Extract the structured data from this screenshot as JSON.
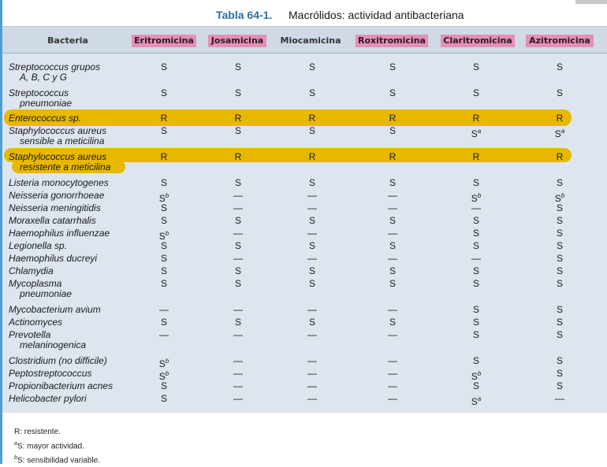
{
  "table": {
    "number": "Tabla 64-1.",
    "title": "Macrólidos: actividad antibacteriana",
    "headers": [
      "Bacteria",
      "Eritromicina",
      "Josamicina",
      "Miocamicina",
      "Roxitromicina",
      "Claritromicina",
      "Azitromicina"
    ],
    "highlight_color": "#e8b800",
    "header_highlight_color": "#e58fb7",
    "rows": [
      {
        "bacteria": "Streptococcus grupos",
        "bacteria2": "A, B, C y G",
        "values": [
          "S",
          "S",
          "S",
          "S",
          "S",
          "S"
        ]
      },
      {
        "bacteria": "Streptococcus",
        "bacteria2": "pneumoniae",
        "values": [
          "S",
          "S",
          "S",
          "S",
          "S",
          "S"
        ]
      },
      {
        "bacteria": "Enterococcus sp.",
        "bacteria2": "",
        "values": [
          "R",
          "R",
          "R",
          "R",
          "R",
          "R"
        ],
        "highlight": true
      },
      {
        "bacteria": "Staphylococcus aureus",
        "bacteria2": "sensible a meticilina",
        "values": [
          "S",
          "S",
          "S",
          "S",
          "S^a",
          "S^a"
        ]
      },
      {
        "bacteria": "Staphylococcus aureus",
        "bacteria2": "resistente a meticilina",
        "values": [
          "R",
          "R",
          "R",
          "R",
          "R",
          "R"
        ],
        "highlight": true
      },
      {
        "bacteria": "Listeria monocytogenes",
        "bacteria2": "",
        "values": [
          "S",
          "S",
          "S",
          "S",
          "S",
          "S"
        ]
      },
      {
        "bacteria": "Neisseria gonorrhoeae",
        "bacteria2": "",
        "values": [
          "S^b",
          "—",
          "—",
          "—",
          "S^b",
          "S^b"
        ]
      },
      {
        "bacteria": "Neisseria meningitidis",
        "bacteria2": "",
        "values": [
          "S",
          "—",
          "—",
          "—",
          "—",
          "S"
        ]
      },
      {
        "bacteria": "Moraxella catarrhalis",
        "bacteria2": "",
        "values": [
          "S",
          "S",
          "S",
          "S",
          "S",
          "S"
        ]
      },
      {
        "bacteria": "Haemophilus influenzae",
        "bacteria2": "",
        "values": [
          "S^b",
          "—",
          "—",
          "—",
          "S",
          "S"
        ]
      },
      {
        "bacteria": "Legionella sp.",
        "bacteria2": "",
        "values": [
          "S",
          "S",
          "S",
          "S",
          "S",
          "S"
        ]
      },
      {
        "bacteria": "Haemophilus ducreyi",
        "bacteria2": "",
        "values": [
          "S",
          "—",
          "—",
          "—",
          "—",
          "S"
        ]
      },
      {
        "bacteria": "Chlamydia",
        "bacteria2": "",
        "values": [
          "S",
          "S",
          "S",
          "S",
          "S",
          "S"
        ]
      },
      {
        "bacteria": "Mycoplasma",
        "bacteria2": "pneumoniae",
        "values": [
          "S",
          "S",
          "S",
          "S",
          "S",
          "S"
        ]
      },
      {
        "bacteria": "Mycobacterium avium",
        "bacteria2": "",
        "values": [
          "—",
          "—",
          "—",
          "—",
          "S",
          "S"
        ]
      },
      {
        "bacteria": "Actinomyces",
        "bacteria2": "",
        "values": [
          "S",
          "S",
          "S",
          "S",
          "S",
          "S"
        ]
      },
      {
        "bacteria": "Prevotella",
        "bacteria2": "melaninogenica",
        "values": [
          "—",
          "—",
          "—",
          "—",
          "S",
          "S"
        ]
      },
      {
        "bacteria": "Clostridium (no difficile)",
        "bacteria2": "",
        "values": [
          "S^b",
          "—",
          "—",
          "—",
          "S",
          "S"
        ]
      },
      {
        "bacteria": "Peptostreptococcus",
        "bacteria2": "",
        "values": [
          "S^b",
          "—",
          "—",
          "—",
          "S^b",
          "S"
        ]
      },
      {
        "bacteria": "Propionibacterium acnes",
        "bacteria2": "",
        "values": [
          "S",
          "—",
          "—",
          "—",
          "S",
          "S"
        ]
      },
      {
        "bacteria": "Helicobacter pylori",
        "bacteria2": "",
        "values": [
          "S",
          "—",
          "—",
          "—",
          "S^a",
          "—"
        ]
      }
    ]
  },
  "footer": {
    "line1": "R: resistente.",
    "line2": "S: mayor actividad.",
    "line2_mark": "a",
    "line3": "S: sensibilidad variable.",
    "line3_mark": "b"
  }
}
